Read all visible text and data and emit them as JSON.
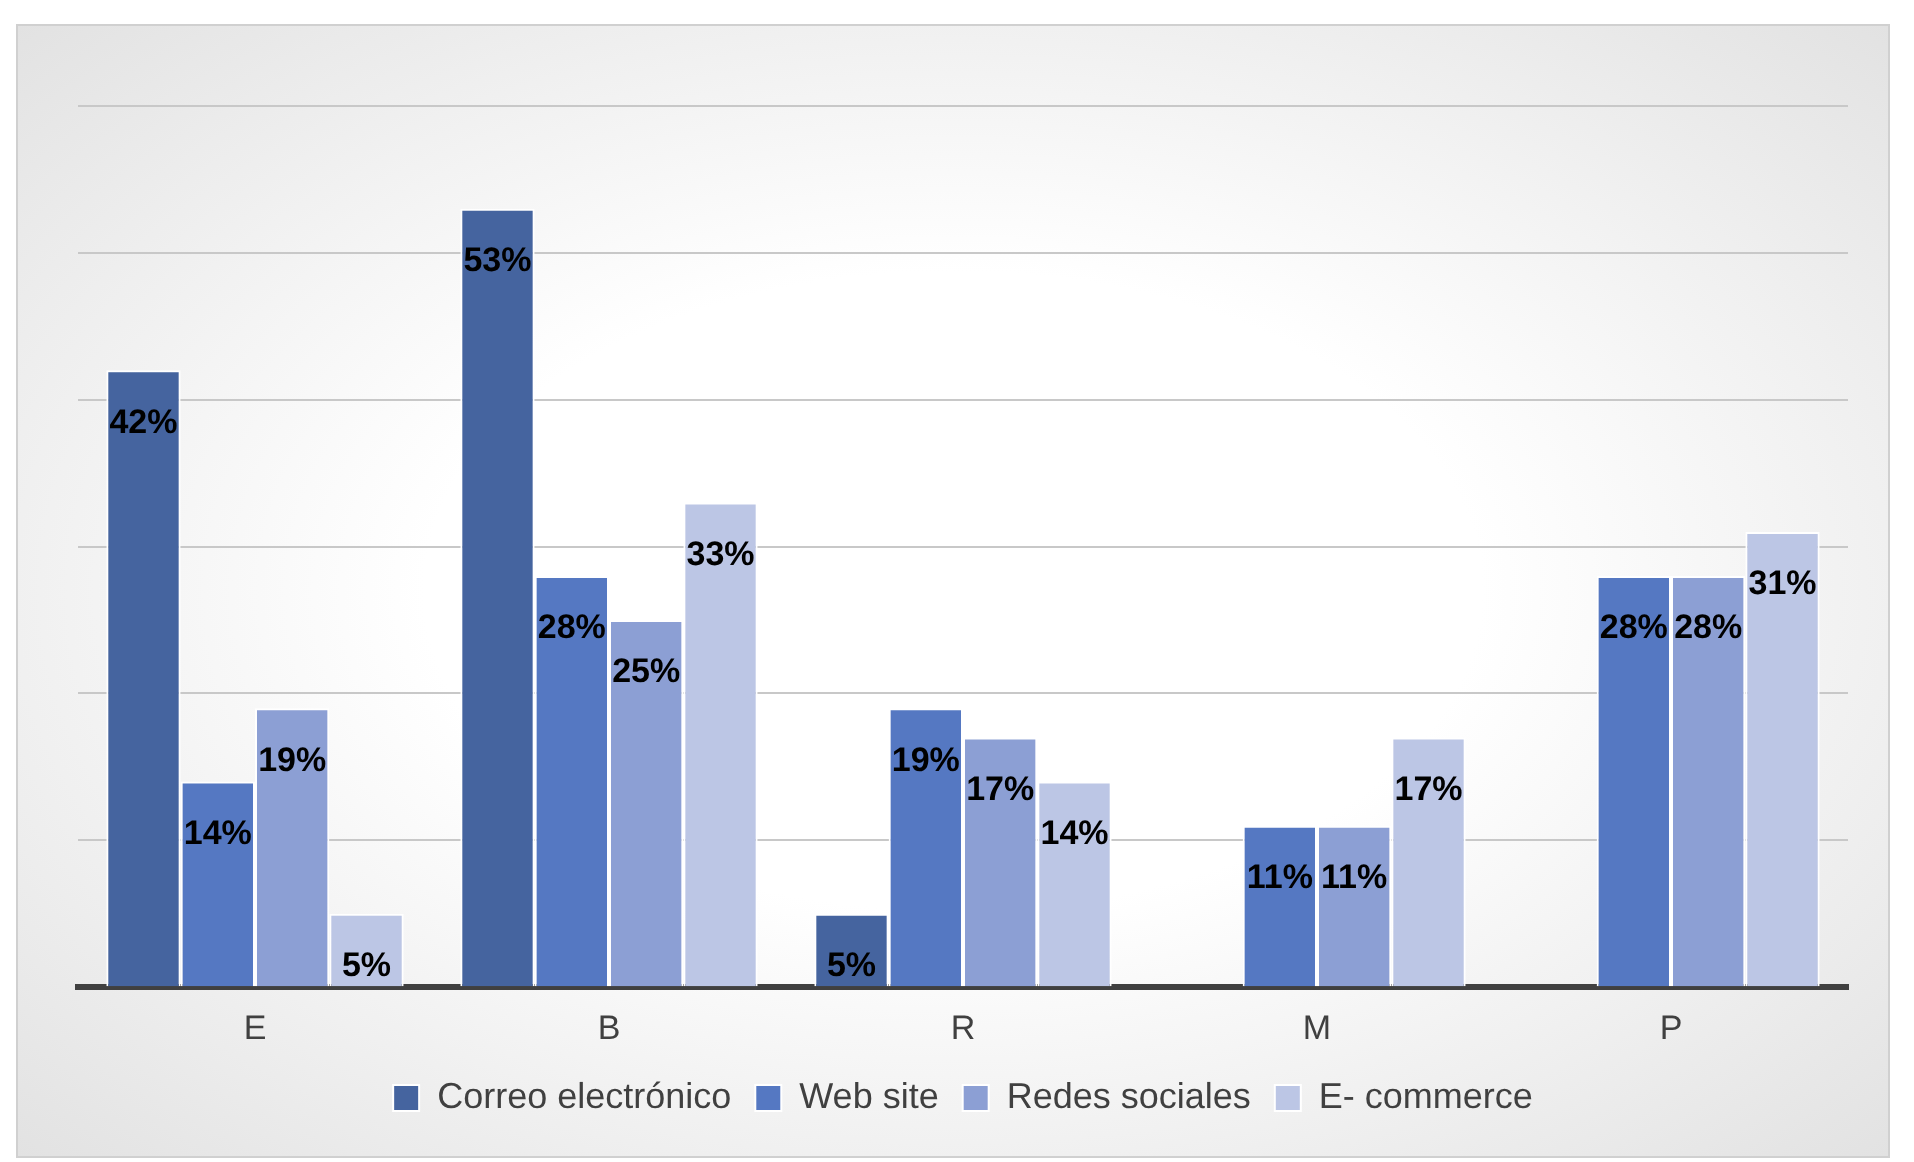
{
  "chart_data": {
    "type": "bar",
    "categories": [
      "E",
      "B",
      "R",
      "M",
      "P"
    ],
    "series": [
      {
        "name": "Correo electrónico",
        "color": "#45649f",
        "values": [
          42,
          53,
          5,
          null,
          null
        ],
        "value_labels": [
          "42%",
          "53%",
          "5%",
          null,
          null
        ]
      },
      {
        "name": "Web site",
        "color": "#5578c2",
        "values": [
          14,
          28,
          19,
          11,
          28
        ],
        "value_labels": [
          "14%",
          "28%",
          "19%",
          "11%",
          "28%"
        ]
      },
      {
        "name": "Redes sociales",
        "color": "#8c9fd4",
        "values": [
          19,
          25,
          17,
          11,
          28
        ],
        "value_labels": [
          "19%",
          "25%",
          "17%",
          "11%",
          "28%"
        ]
      },
      {
        "name": "E- commerce",
        "color": "#bcc6e5",
        "values": [
          5,
          33,
          14,
          17,
          31
        ],
        "value_labels": [
          "5%",
          "33%",
          "14%",
          "17%",
          "31%"
        ]
      }
    ],
    "tick_labels": "x",
    "grid": "y",
    "legend": "bottom"
  }
}
